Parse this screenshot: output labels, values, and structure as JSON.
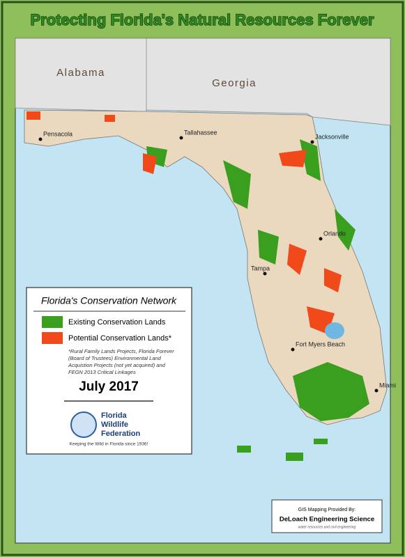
{
  "header": {
    "title": "Protecting Florida's Natural Resources Forever"
  },
  "map": {
    "states": [
      "Alabama",
      "Georgia"
    ],
    "cities": [
      "Pensacola",
      "Tallahassee",
      "Jacksonville",
      "Orlando",
      "Tampa",
      "Fort Myers Beach",
      "Miami"
    ]
  },
  "legend": {
    "title": "Florida's Conservation Network",
    "items": [
      {
        "label": "Existing Conservation Lands",
        "color": "#3a9e1e"
      },
      {
        "label": "Potential Conservation Lands*",
        "color": "#f04a1a"
      }
    ],
    "note": [
      "*Rural Family Lands Projects, Florida Forever",
      "(Board of Trustees) Environmental Land",
      "Acquistion Projects (not yet acquired) and",
      "FEGN 2013 Critical Linkages"
    ],
    "date": "July 2017",
    "logo": {
      "name_lines": [
        "Florida",
        "Wildlife",
        "Federation"
      ],
      "tagline": "Keeping the Wild in Florida since 1936!"
    }
  },
  "credit": {
    "provided_by": "GIS Mapping Provided By:",
    "company": "DeLoach Engineering Science",
    "tagline": "water resources and civil engineering"
  }
}
